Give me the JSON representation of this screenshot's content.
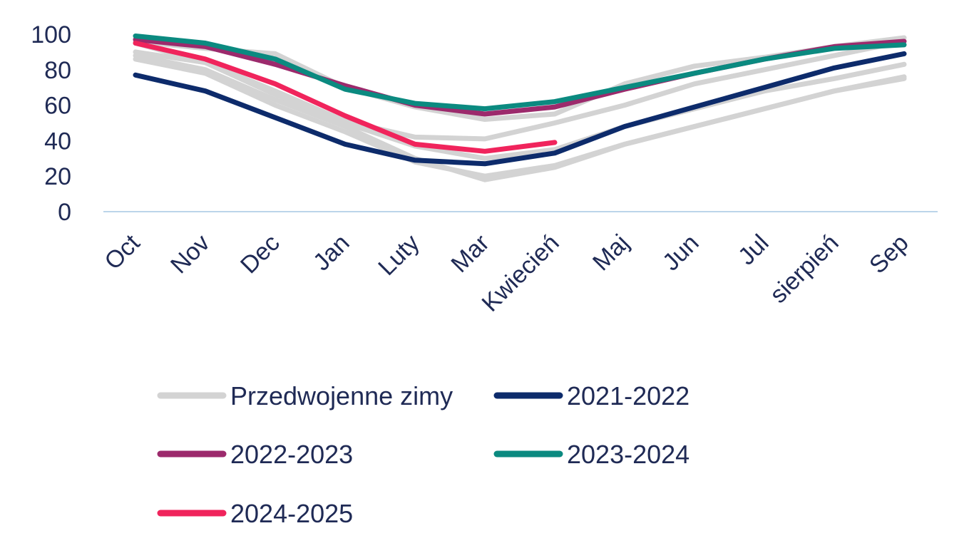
{
  "chart_data": {
    "type": "line",
    "title": "",
    "xlabel": "",
    "ylabel": "",
    "ylim": [
      0,
      100
    ],
    "yticks": [
      0,
      20,
      40,
      60,
      80,
      100
    ],
    "grid": false,
    "legend_position": "bottom",
    "categories": [
      "Oct",
      "Nov",
      "Dec",
      "Jan",
      "Luty",
      "Mar",
      "Kwiecień",
      "Maj",
      "Jun",
      "Jul",
      "sierpień",
      "Sep"
    ],
    "series": [
      {
        "name": "Przedwojenne zimy",
        "color": "#d3d3d3",
        "values": [
          88,
          80,
          63,
          48,
          30,
          18,
          25,
          38,
          48,
          58,
          68,
          75
        ]
      },
      {
        "name": "",
        "color": "#d3d3d3",
        "values": [
          86,
          78,
          60,
          45,
          28,
          20,
          26,
          38,
          48,
          58,
          68,
          76
        ]
      },
      {
        "name": "",
        "color": "#d3d3d3",
        "values": [
          90,
          84,
          68,
          51,
          42,
          41,
          50,
          60,
          72,
          80,
          88,
          96
        ]
      },
      {
        "name": "",
        "color": "#d3d3d3",
        "values": [
          96,
          92,
          89,
          70,
          59,
          52,
          55,
          72,
          82,
          87,
          93,
          98
        ]
      },
      {
        "name": "",
        "color": "#d3d3d3",
        "values": [
          95,
          84,
          66,
          50,
          37,
          30,
          35,
          48,
          58,
          68,
          75,
          83
        ]
      },
      {
        "name": "2021-2022",
        "color": "#0d2b6b",
        "values": [
          77,
          68,
          53,
          38,
          29,
          27,
          33,
          48,
          59,
          70,
          81,
          89
        ]
      },
      {
        "name": "2022-2023",
        "color": "#9c2a6c",
        "values": [
          97,
          93,
          83,
          71,
          60,
          55,
          59,
          69,
          78,
          86,
          93,
          96
        ]
      },
      {
        "name": "2023-2024",
        "color": "#0b8a80",
        "values": [
          99,
          95,
          86,
          69,
          61,
          58,
          62,
          70,
          78,
          86,
          92,
          94
        ]
      },
      {
        "name": "2024-2025",
        "color": "#f0245c",
        "values": [
          95,
          86,
          72,
          54,
          38,
          34,
          39,
          null,
          null,
          null,
          null,
          null
        ]
      }
    ],
    "legend": [
      {
        "label": "Przedwojenne zimy",
        "color": "#d3d3d3"
      },
      {
        "label": "2021-2022",
        "color": "#0d2b6b"
      },
      {
        "label": "2022-2023",
        "color": "#9c2a6c"
      },
      {
        "label": "2023-2024",
        "color": "#0b8a80"
      },
      {
        "label": "2024-2025",
        "color": "#f0245c"
      }
    ],
    "colors": {
      "text": "#1f2a55",
      "axis_line": "#bcd5ea"
    }
  }
}
